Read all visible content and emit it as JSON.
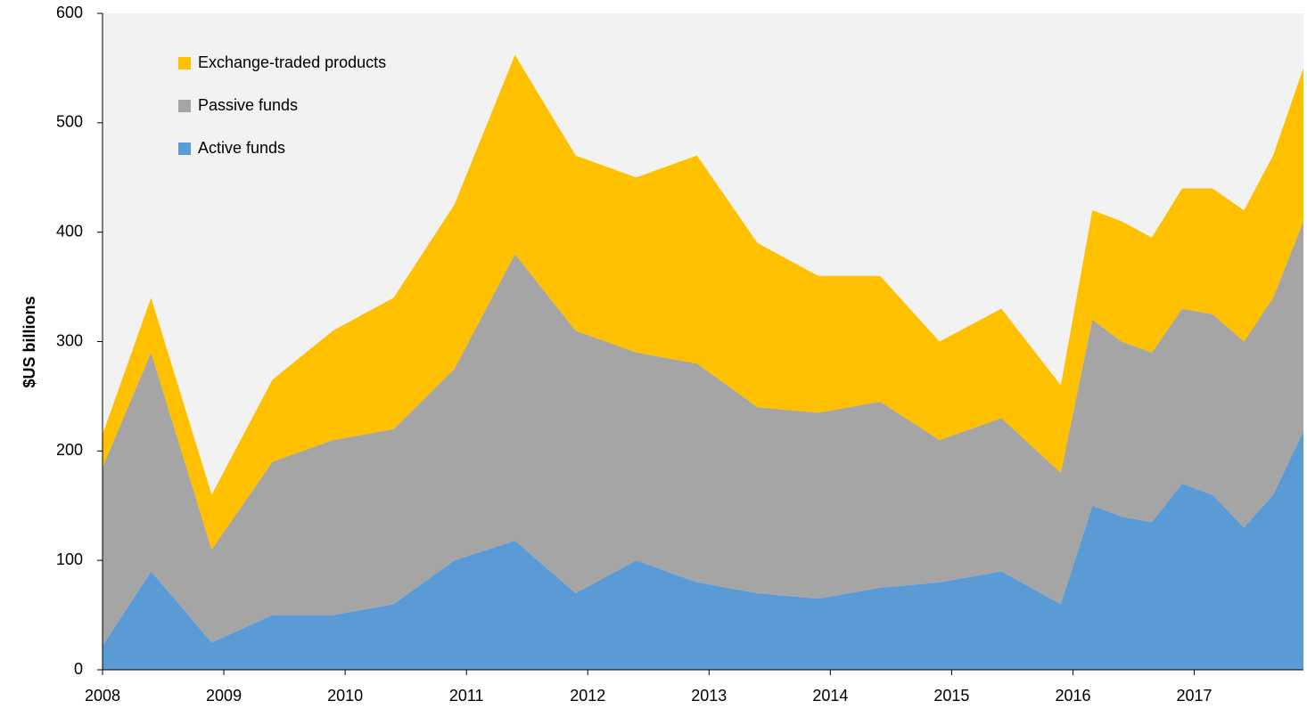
{
  "chart_data": {
    "type": "stacked_area",
    "ylabel": "$US billions",
    "x": [
      2008.0,
      2008.4,
      2008.9,
      2009.4,
      2009.9,
      2010.4,
      2010.9,
      2011.4,
      2011.9,
      2012.4,
      2012.9,
      2013.4,
      2013.9,
      2014.41,
      2014.9,
      2015.41,
      2015.9,
      2016.16,
      2016.4,
      2016.65,
      2016.9,
      2017.15,
      2017.41,
      2017.65,
      2017.9
    ],
    "series": [
      {
        "name": "Active funds",
        "color": "#5b9bd5",
        "values": [
          22,
          90,
          25,
          50,
          50,
          60,
          100,
          118,
          70,
          100,
          80,
          70,
          65,
          75,
          80,
          90,
          60,
          150,
          140,
          135,
          170,
          160,
          130,
          160,
          218
        ]
      },
      {
        "name": "Passive funds",
        "color": "#a5a5a5",
        "values": [
          163,
          200,
          85,
          140,
          160,
          160,
          175,
          262,
          240,
          190,
          200,
          170,
          170,
          170,
          130,
          140,
          120,
          170,
          160,
          155,
          160,
          165,
          170,
          180,
          192
        ]
      },
      {
        "name": "Exchange-traded products",
        "color": "#ffc000",
        "values": [
          30,
          50,
          50,
          75,
          100,
          120,
          150,
          182,
          160,
          160,
          190,
          150,
          125,
          115,
          90,
          100,
          80,
          100,
          110,
          105,
          110,
          115,
          120,
          130,
          140
        ]
      }
    ],
    "xlim": [
      2008,
      2017.9
    ],
    "xticks": [
      2008,
      2009,
      2010,
      2011,
      2012,
      2013,
      2014,
      2015,
      2016,
      2017
    ],
    "ylim": [
      0,
      600
    ],
    "yticks": [
      0,
      100,
      200,
      300,
      400,
      500,
      600
    ],
    "legend": "upper left",
    "plot_background": "#f2f2f2"
  }
}
